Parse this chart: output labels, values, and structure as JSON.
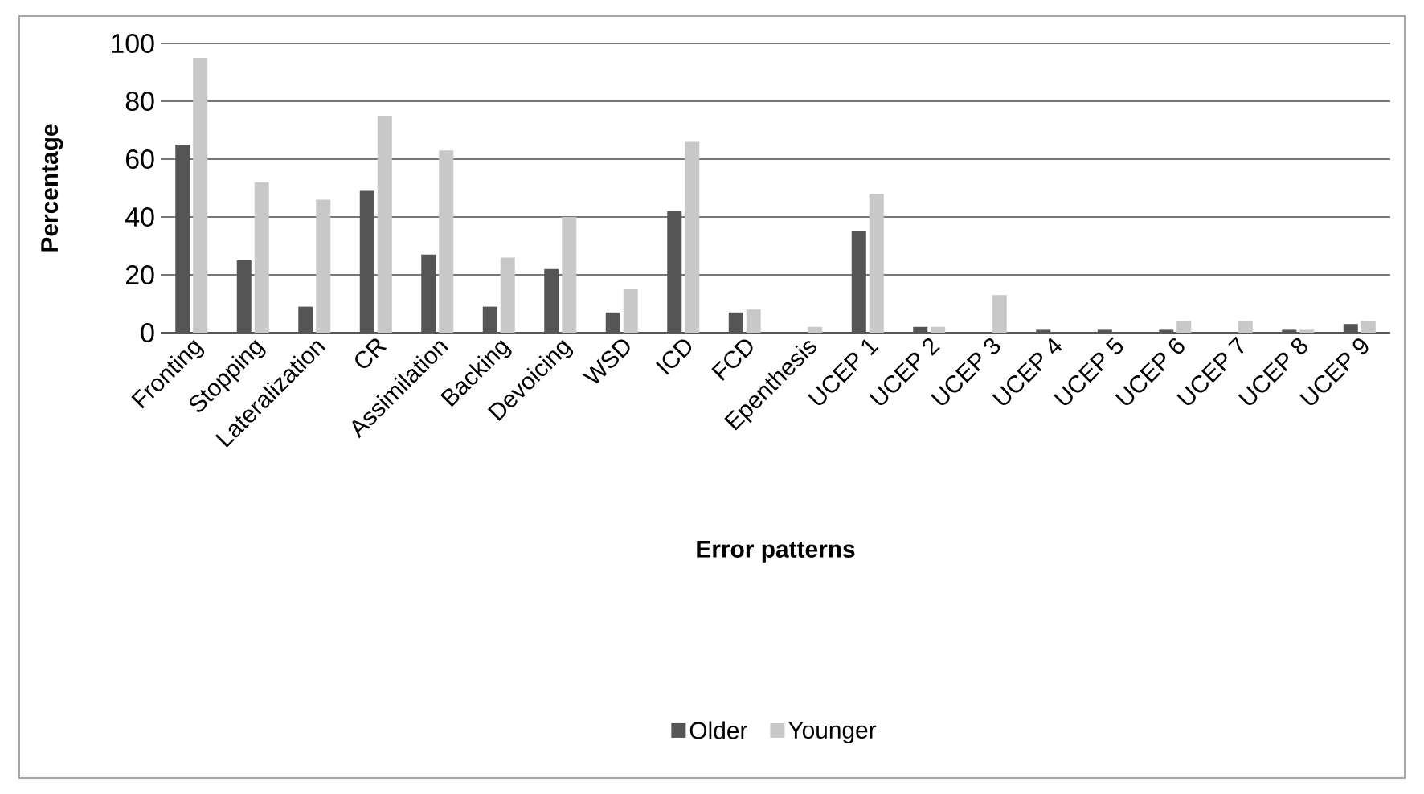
{
  "chart_data": {
    "type": "bar",
    "xlabel": "Error patterns",
    "ylabel": "Percentage",
    "categories": [
      "Fronting",
      "Stopping",
      "Lateralization",
      "CR",
      "Assimilation",
      "Backing",
      "Devoicing",
      "WSD",
      "ICD",
      "FCD",
      "Epenthesis",
      "UCEP 1",
      "UCEP 2",
      "UCEP 3",
      "UCEP 4",
      "UCEP 5",
      "UCEP 6",
      "UCEP 7",
      "UCEP 8",
      "UCEP 9"
    ],
    "series": [
      {
        "name": "Older",
        "color": "#555555",
        "values": [
          65,
          25,
          9,
          49,
          27,
          9,
          22,
          7,
          42,
          7,
          0,
          35,
          2,
          0,
          1,
          1,
          1,
          0,
          1,
          3
        ]
      },
      {
        "name": "Younger",
        "color": "#c8c8c8",
        "values": [
          95,
          52,
          46,
          75,
          63,
          26,
          40,
          15,
          66,
          8,
          2,
          48,
          2,
          13,
          0,
          0,
          4,
          4,
          1,
          4
        ]
      }
    ],
    "ylim": [
      0,
      100
    ],
    "yticks": [
      0,
      20,
      40,
      60,
      80,
      100
    ],
    "grid": "y",
    "legend": "bottom"
  }
}
